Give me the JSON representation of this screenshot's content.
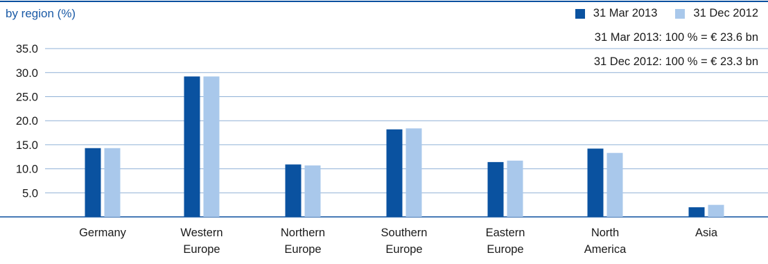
{
  "chart_data": {
    "type": "bar",
    "subtitle": "by region (%)",
    "categories": [
      [
        "Germany"
      ],
      [
        "Western",
        "Europe"
      ],
      [
        "Northern",
        "Europe"
      ],
      [
        "Southern",
        "Europe"
      ],
      [
        "Eastern",
        "Europe"
      ],
      [
        "North",
        "America"
      ],
      [
        "Asia"
      ]
    ],
    "series": [
      {
        "name": "31 Mar 2013",
        "color": "#0a52a0",
        "values": [
          14.3,
          29.2,
          10.9,
          18.2,
          11.4,
          14.2,
          2.0
        ]
      },
      {
        "name": "31 Dec 2012",
        "color": "#a9c8eb",
        "values": [
          14.3,
          29.2,
          10.7,
          18.4,
          11.7,
          13.3,
          2.5
        ]
      }
    ],
    "ylim": [
      0,
      35
    ],
    "yticks": [
      "5.0",
      "10.0",
      "15.0",
      "20.0",
      "25.0",
      "30.0",
      "35.0"
    ],
    "grid": true,
    "legend_position": "top-right",
    "notes": [
      "31 Mar 2013: 100 % = € 23.6 bn",
      "31 Dec 2012: 100 % = € 23.3 bn"
    ]
  }
}
